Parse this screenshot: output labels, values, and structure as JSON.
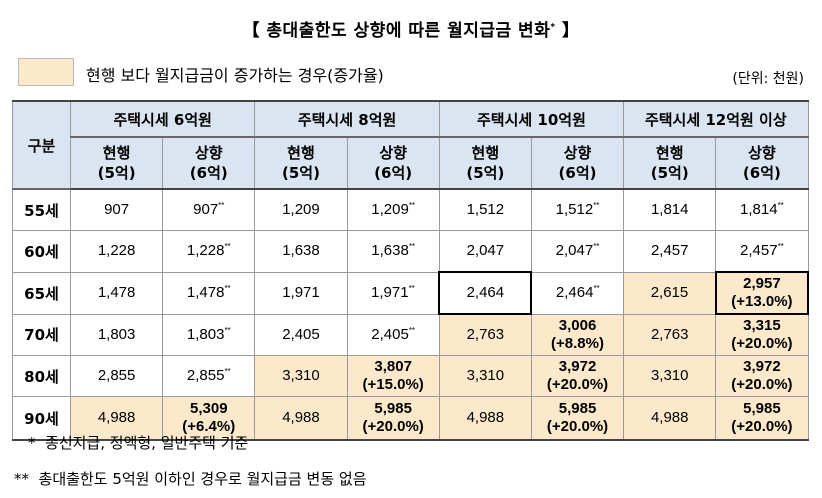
{
  "title": "【 총대출한도 상향에 따른 월지급금 변화",
  "title_mark": "*",
  "title_end": " 】",
  "legend": "현행 보다 월지급금이 증가하는 경우(증가율)",
  "unit": "(단위: 천원)",
  "header": {
    "corner": "구분",
    "groups": [
      "주택시세 6억원",
      "주택시세 8억원",
      "주택시세 10억원",
      "주택시세 12억원 이상"
    ],
    "current_label": "현행",
    "current_sub": "(5억)",
    "raised_label": "상향",
    "raised_sub": "(6억)"
  },
  "rows": [
    {
      "age": "55세",
      "c": [
        "907",
        "907",
        "1,209",
        "1,209",
        "1,512",
        "1,512",
        "1,814",
        "1,814"
      ],
      "r": [
        "",
        "",
        "",
        "",
        "",
        "",
        "",
        ""
      ]
    },
    {
      "age": "60세",
      "c": [
        "1,228",
        "1,228",
        "1,638",
        "1,638",
        "2,047",
        "2,047",
        "2,457",
        "2,457"
      ],
      "r": [
        "",
        "",
        "",
        "",
        "",
        "",
        "",
        ""
      ]
    },
    {
      "age": "65세",
      "c": [
        "1,478",
        "1,478",
        "1,971",
        "1,971",
        "2,464",
        "2,464",
        "2,615",
        "2,957"
      ],
      "r": [
        "",
        "",
        "",
        "",
        "",
        "",
        "",
        "(+13.0%)"
      ]
    },
    {
      "age": "70세",
      "c": [
        "1,803",
        "1,803",
        "2,405",
        "2,405",
        "2,763",
        "3,006",
        "2,763",
        "3,315"
      ],
      "r": [
        "",
        "",
        "",
        "",
        "",
        "(+8.8%)",
        "",
        "(+20.0%)"
      ]
    },
    {
      "age": "80세",
      "c": [
        "2,855",
        "2,855",
        "3,310",
        "3,807",
        "3,310",
        "3,972",
        "3,310",
        "3,972"
      ],
      "r": [
        "",
        "",
        "",
        "(+15.0%)",
        "",
        "(+20.0%)",
        "",
        "(+20.0%)"
      ]
    },
    {
      "age": "90세",
      "c": [
        "4,988",
        "5,309",
        "4,988",
        "5,985",
        "4,988",
        "5,985",
        "4,988",
        "5,985"
      ],
      "r": [
        "",
        "(+6.4%)",
        "",
        "(+20.0%)",
        "",
        "(+20.0%)",
        "",
        "(+20.0%)"
      ]
    }
  ],
  "footnotes": {
    "note1_mark": "*",
    "note1": "종신지급, 정액형, 일반주택 기준",
    "note2_mark": "**",
    "note2": "총대출한도 5억원 이하인 경우로 월지급금 변동 없음",
    "double_mark": "**"
  }
}
